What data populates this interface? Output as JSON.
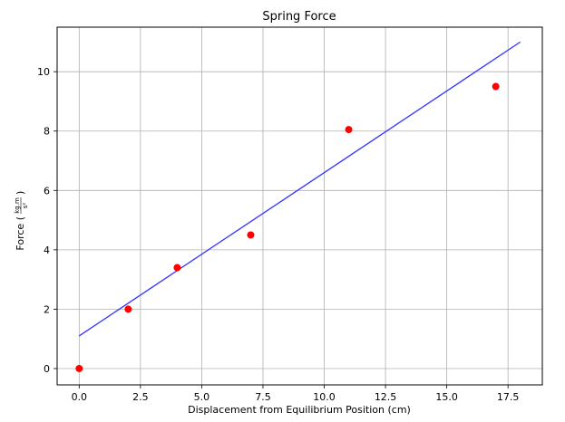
{
  "chart_data": {
    "type": "scatter",
    "title": "Spring Force",
    "xlabel": "Displacement from Equilibrium Position (cm)",
    "ylabel": {
      "prefix": "Force (",
      "numerator": "kg.m",
      "denominator": "s²",
      "suffix": ")"
    },
    "xlim": [
      -0.9,
      18.9
    ],
    "ylim": [
      -0.55,
      11.5
    ],
    "xticks": [
      0.0,
      2.5,
      5.0,
      7.5,
      10.0,
      12.5,
      15.0,
      17.5
    ],
    "xtick_labels": [
      "0.0",
      "2.5",
      "5.0",
      "7.5",
      "10.0",
      "12.5",
      "15.0",
      "17.5"
    ],
    "yticks": [
      0,
      2,
      4,
      6,
      8,
      10
    ],
    "ytick_labels": [
      "0",
      "2",
      "4",
      "6",
      "8",
      "10"
    ],
    "grid": true,
    "series": [
      {
        "kind": "scatter",
        "color": "#ff0000",
        "points": [
          {
            "x": 0,
            "y": 0.0
          },
          {
            "x": 2,
            "y": 2.0
          },
          {
            "x": 4,
            "y": 3.4
          },
          {
            "x": 7,
            "y": 4.5
          },
          {
            "x": 11,
            "y": 8.05
          },
          {
            "x": 17,
            "y": 9.5
          }
        ]
      },
      {
        "kind": "line",
        "color": "#3333ff",
        "points": [
          {
            "x": 0,
            "y": 1.1
          },
          {
            "x": 18,
            "y": 11.0
          }
        ]
      }
    ]
  }
}
